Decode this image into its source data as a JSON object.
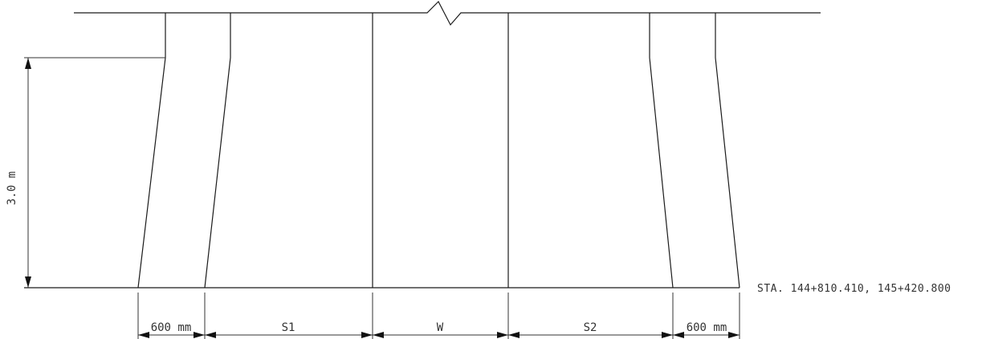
{
  "height_dimension": "3.0  m",
  "station_label": "STA. 144+810.410, 145+420.800",
  "bottom_dimensions": {
    "left_panel": "600 mm",
    "s1": "S1",
    "w": "W",
    "s2": "S2",
    "right_panel": "600 mm"
  }
}
